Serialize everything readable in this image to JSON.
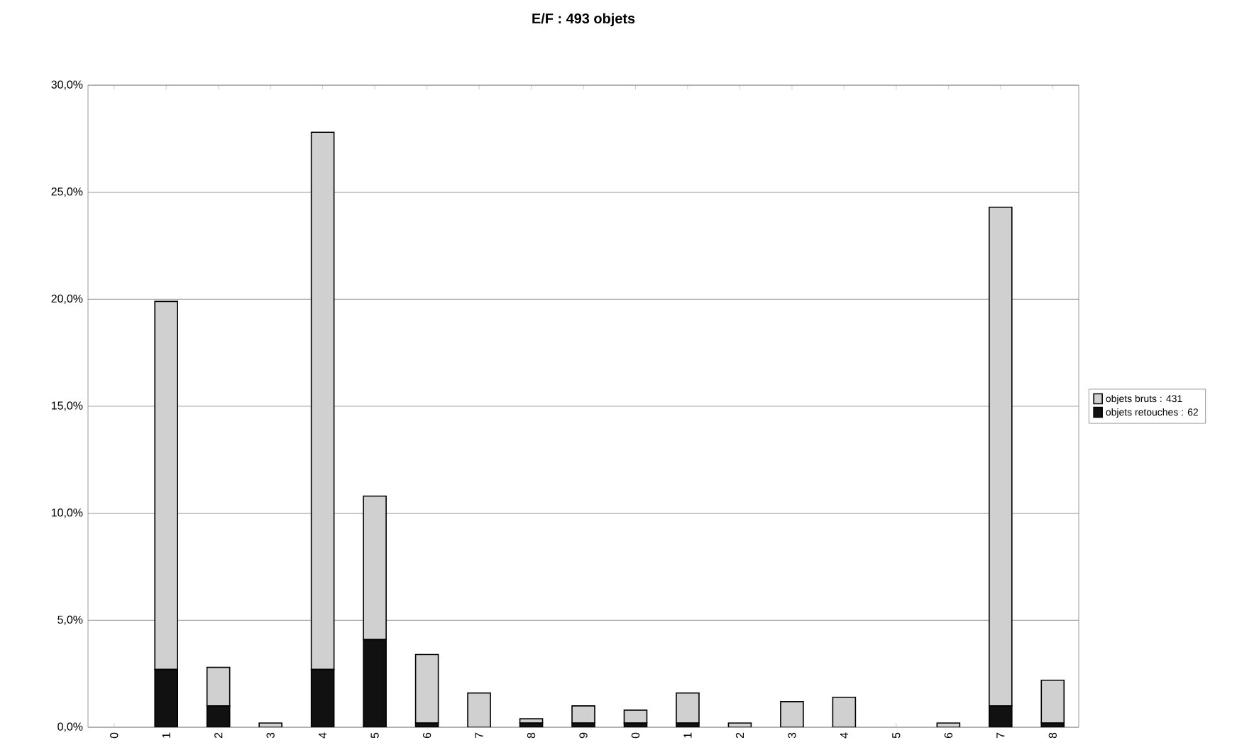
{
  "chart_data": {
    "type": "bar",
    "title": "E/F : 493 objets",
    "categories": [
      "0",
      "1",
      "2",
      "3",
      "4",
      "5",
      "6",
      "7",
      "8",
      "9",
      "0",
      "1",
      "2",
      "3",
      "4",
      "5",
      "6",
      "7",
      "8"
    ],
    "stacked": true,
    "series": [
      {
        "name": "objets retouches : 62",
        "color": "#111111",
        "values": [
          0,
          2.7,
          1.0,
          0,
          2.7,
          4.1,
          0.2,
          0,
          0.2,
          0.2,
          0.2,
          0.2,
          0,
          0,
          0,
          0,
          0,
          1.0,
          0.2
        ]
      },
      {
        "name": "objets bruts : 431",
        "color": "#d0d0d0",
        "values": [
          0,
          17.2,
          1.8,
          0.2,
          25.1,
          6.7,
          3.2,
          1.6,
          0.2,
          0.8,
          0.6,
          1.4,
          0.2,
          1.2,
          1.4,
          0,
          0.2,
          23.3,
          2.0
        ]
      }
    ],
    "ylim": [
      0,
      30
    ],
    "yticks": [
      {
        "value": 0,
        "label": "0,0%"
      },
      {
        "value": 5,
        "label": "5,0%"
      },
      {
        "value": 10,
        "label": "10,0%"
      },
      {
        "value": 15,
        "label": "15,0%"
      },
      {
        "value": 20,
        "label": "20,0%"
      },
      {
        "value": 25,
        "label": "25,0%"
      },
      {
        "value": 30,
        "label": "30,0%"
      }
    ],
    "grid": "y",
    "legend": "right"
  }
}
